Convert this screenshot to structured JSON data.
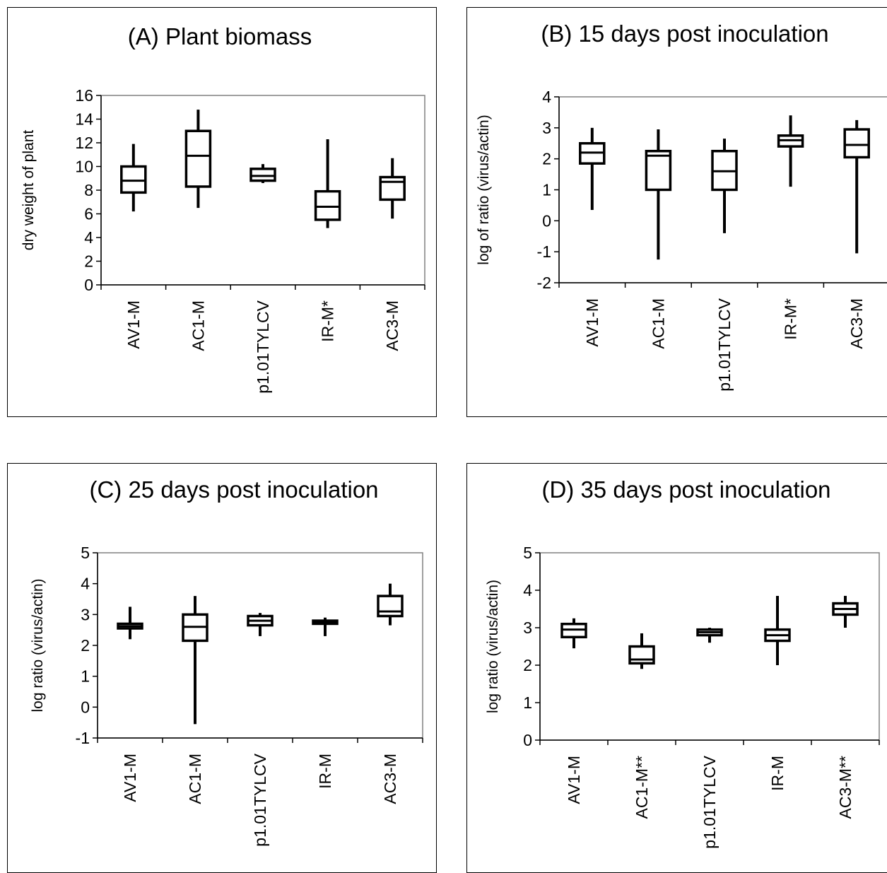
{
  "chart_data": [
    {
      "type": "box",
      "title": "(A) Plant biomass",
      "ylabel": "dry weight of plant",
      "ylim": [
        0,
        16
      ],
      "yticks": [
        "0",
        "2",
        "4",
        "6",
        "8",
        "10",
        "12",
        "14",
        "16"
      ],
      "yticks_values": [
        0,
        2,
        4,
        6,
        8,
        10,
        12,
        14,
        16
      ],
      "categories": [
        "AV1-M",
        "AC1-M",
        "p1.01TYLCV",
        "IR-M*",
        "AC3-M"
      ],
      "series": [
        {
          "category": "AV1-M",
          "min": 6.2,
          "q1": 7.8,
          "median": 8.8,
          "q3": 10.0,
          "max": 11.9
        },
        {
          "category": "AC1-M",
          "min": 6.5,
          "q1": 8.3,
          "median": 10.9,
          "q3": 13.0,
          "max": 14.8
        },
        {
          "category": "p1.01TYLCV",
          "min": 8.6,
          "q1": 8.8,
          "median": 9.2,
          "q3": 9.8,
          "max": 10.2
        },
        {
          "category": "IR-M*",
          "min": 4.8,
          "q1": 5.5,
          "median": 6.6,
          "q3": 7.9,
          "max": 12.3
        },
        {
          "category": "AC3-M",
          "min": 5.6,
          "q1": 7.2,
          "median": 8.7,
          "q3": 9.1,
          "max": 10.7
        }
      ]
    },
    {
      "type": "box",
      "title": "(B) 15 days post inoculation",
      "ylabel": "log of ratio (virus/actin)",
      "ylim": [
        -2,
        4
      ],
      "yticks": [
        "-2",
        "-1",
        "0",
        "1",
        "2",
        "3",
        "4"
      ],
      "yticks_values": [
        -2,
        -1,
        0,
        1,
        2,
        3,
        4
      ],
      "categories": [
        "AV1-M",
        "AC1-M",
        "p1.01TYLCV",
        "IR-M*",
        "AC3-M"
      ],
      "series": [
        {
          "category": "AV1-M",
          "min": 0.35,
          "q1": 1.85,
          "median": 2.2,
          "q3": 2.5,
          "max": 3.0
        },
        {
          "category": "AC1-M",
          "min": -1.25,
          "q1": 1.0,
          "median": 2.1,
          "q3": 2.25,
          "max": 2.95
        },
        {
          "category": "p1.01TYLCV",
          "min": -0.4,
          "q1": 1.0,
          "median": 1.6,
          "q3": 2.25,
          "max": 2.65
        },
        {
          "category": "IR-M*",
          "min": 1.1,
          "q1": 2.4,
          "median": 2.6,
          "q3": 2.75,
          "max": 3.4
        },
        {
          "category": "AC3-M",
          "min": -1.05,
          "q1": 2.05,
          "median": 2.45,
          "q3": 2.95,
          "max": 3.25
        }
      ]
    },
    {
      "type": "box",
      "title": "(C) 25 days post inoculation",
      "ylabel": "log ratio (virus/actin)",
      "ylim": [
        -1,
        5
      ],
      "yticks": [
        "-1",
        "0",
        "1",
        "2",
        "3",
        "4",
        "5"
      ],
      "yticks_values": [
        -1,
        0,
        1,
        2,
        3,
        4,
        5
      ],
      "categories": [
        "AV1-M",
        "AC1-M",
        "p1.01TYLCV",
        "IR-M",
        "AC3-M"
      ],
      "series": [
        {
          "category": "AV1-M",
          "min": 2.2,
          "q1": 2.55,
          "median": 2.62,
          "q3": 2.7,
          "max": 3.25
        },
        {
          "category": "AC1-M",
          "min": -0.55,
          "q1": 2.15,
          "median": 2.6,
          "q3": 3.0,
          "max": 3.6
        },
        {
          "category": "p1.01TYLCV",
          "min": 2.3,
          "q1": 2.65,
          "median": 2.8,
          "q3": 2.95,
          "max": 3.05
        },
        {
          "category": "IR-M",
          "min": 2.3,
          "q1": 2.7,
          "median": 2.76,
          "q3": 2.8,
          "max": 2.9
        },
        {
          "category": "AC3-M",
          "min": 2.65,
          "q1": 2.95,
          "median": 3.1,
          "q3": 3.6,
          "max": 4.0
        }
      ]
    },
    {
      "type": "box",
      "title": "(D) 35 days post inoculation",
      "ylabel": "log ratio (virus/actin)",
      "ylim": [
        0,
        5
      ],
      "yticks": [
        "0",
        "1",
        "2",
        "3",
        "4",
        "5"
      ],
      "yticks_values": [
        0,
        1,
        2,
        3,
        4,
        5
      ],
      "categories": [
        "AV1-M",
        "AC1-M**",
        "p1.01TYLCV",
        "IR-M",
        "AC3-M**"
      ],
      "series": [
        {
          "category": "AV1-M",
          "min": 2.45,
          "q1": 2.75,
          "median": 2.95,
          "q3": 3.1,
          "max": 3.25
        },
        {
          "category": "AC1-M**",
          "min": 1.9,
          "q1": 2.05,
          "median": 2.15,
          "q3": 2.5,
          "max": 2.85
        },
        {
          "category": "p1.01TYLCV",
          "min": 2.6,
          "q1": 2.8,
          "median": 2.88,
          "q3": 2.95,
          "max": 3.0
        },
        {
          "category": "IR-M",
          "min": 2.0,
          "q1": 2.65,
          "median": 2.8,
          "q3": 2.95,
          "max": 3.85
        },
        {
          "category": "AC3-M**",
          "min": 3.0,
          "q1": 3.35,
          "median": 3.5,
          "q3": 3.65,
          "max": 3.85
        }
      ]
    }
  ]
}
